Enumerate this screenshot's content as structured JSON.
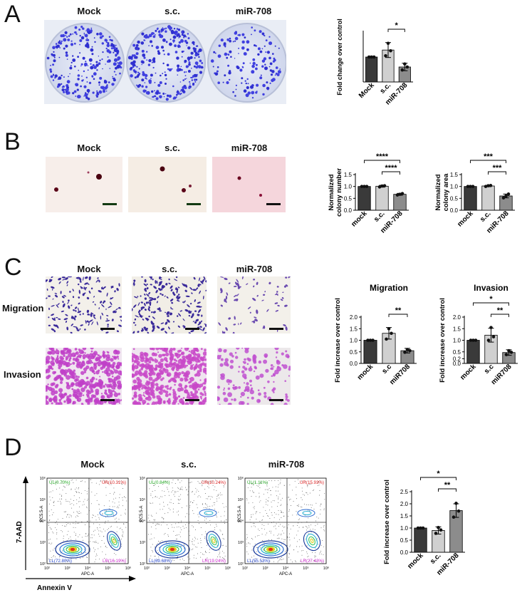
{
  "panels": {
    "A": {
      "letter": "A",
      "labels": [
        "Mock",
        "s.c.",
        "miR-708"
      ]
    },
    "B": {
      "letter": "B",
      "labels": [
        "Mock",
        "s.c.",
        "miR-708"
      ]
    },
    "C": {
      "letter": "C",
      "labels": [
        "Mock",
        "s.c.",
        "miR-708"
      ],
      "rows": [
        "Migration",
        "Invasion"
      ]
    },
    "D": {
      "letter": "D",
      "labels": [
        "Mock",
        "s.c.",
        "miR-708"
      ],
      "y_axis_label": "7-AAD",
      "x_axis_label": "Annexin V",
      "flow_axis_x": "APC-A",
      "flow_axis_y": "PC5.5-A",
      "quadrants": [
        {
          "UL": "UL(0.70%)",
          "UR": "UR(10.31%)",
          "LL": "LL(72.80%)",
          "LR": "LR(16.19%)"
        },
        {
          "UL": "UL(0.84%)",
          "UR": "UR(10.24%)",
          "LL": "LL(69.68%)",
          "LR": "LR(19.24%)"
        },
        {
          "UL": "UL(1.11%)",
          "UR": "UR(15.93%)",
          "LL": "LL(55.53%)",
          "LR": "LR(27.43%)"
        }
      ],
      "tick_labels": [
        "10²",
        "10³",
        "10⁴",
        "10⁵",
        "10⁶"
      ]
    }
  },
  "chart_data": [
    {
      "id": "A-colony",
      "type": "bar",
      "categories": [
        "Mock",
        "s.c.",
        "miR-708"
      ],
      "values": [
        1.0,
        1.28,
        0.6
      ],
      "errors": [
        0.0,
        0.3,
        0.15
      ],
      "points": [
        [
          1.0,
          1.0,
          1.0
        ],
        [
          1.05,
          1.55,
          1.25
        ],
        [
          0.48,
          0.72,
          0.6
        ]
      ],
      "colors": [
        "#3a3a3a",
        "#d0d0d0",
        "#8c8c8c"
      ],
      "title": "",
      "ylabel": "Fold change over control",
      "ylim": [
        0,
        2
      ],
      "yticks": [],
      "significance": [
        {
          "from": 1,
          "to": 2,
          "label": "*"
        }
      ]
    },
    {
      "id": "B-number",
      "type": "bar",
      "categories": [
        "mock",
        "s.c.",
        "miR-708"
      ],
      "values": [
        1.0,
        1.01,
        0.67
      ],
      "errors": [
        0.0,
        0.04,
        0.04
      ],
      "points": [
        [
          1.0,
          1.0,
          1.0
        ],
        [
          0.98,
          1.02,
          1.03
        ],
        [
          0.64,
          0.67,
          0.7
        ]
      ],
      "colors": [
        "#3a3a3a",
        "#d0d0d0",
        "#8c8c8c"
      ],
      "title": "",
      "ylabel": "Normalized colony number",
      "ylabel_lines": [
        "Normalized",
        "colony number"
      ],
      "ylim": [
        0,
        1.5
      ],
      "yticks": [
        "0.0",
        "0.5",
        "1.0",
        "1.5"
      ],
      "yticks_values": [
        0,
        0.5,
        1.0,
        1.5
      ],
      "significance": [
        {
          "from": 1,
          "to": 2,
          "label": "****",
          "level": 1
        },
        {
          "from": 0,
          "to": 2,
          "label": "****",
          "level": 2
        }
      ]
    },
    {
      "id": "B-area",
      "type": "bar",
      "categories": [
        "mock",
        "s.c.",
        "miR-708"
      ],
      "values": [
        1.0,
        1.02,
        0.6
      ],
      "errors": [
        0.0,
        0.03,
        0.08
      ],
      "points": [
        [
          1.0,
          1.0,
          1.0
        ],
        [
          1.0,
          1.03,
          1.04
        ],
        [
          0.52,
          0.6,
          0.68
        ]
      ],
      "colors": [
        "#3a3a3a",
        "#d0d0d0",
        "#8c8c8c"
      ],
      "title": "",
      "ylabel": "Normalized colony area",
      "ylabel_lines": [
        "Normalized",
        "colony area"
      ],
      "ylim": [
        0,
        1.5
      ],
      "yticks": [
        "0.0",
        "0.5",
        "1.0",
        "1.5"
      ],
      "yticks_values": [
        0,
        0.5,
        1.0,
        1.5
      ],
      "significance": [
        {
          "from": 1,
          "to": 2,
          "label": "***",
          "level": 1
        },
        {
          "from": 0,
          "to": 2,
          "label": "***",
          "level": 2
        }
      ]
    },
    {
      "id": "C-migration",
      "type": "bar",
      "categories": [
        "mock",
        "s.c",
        "miR708"
      ],
      "values": [
        1.0,
        1.3,
        0.55
      ],
      "errors": [
        0.0,
        0.25,
        0.1
      ],
      "points": [
        [
          1.0,
          1.0,
          1.0
        ],
        [
          1.05,
          1.5,
          1.3
        ],
        [
          0.48,
          0.6,
          0.55
        ]
      ],
      "colors": [
        "#3a3a3a",
        "#d0d0d0",
        "#8c8c8c"
      ],
      "title": "Migration",
      "ylabel": "Fold increase over control",
      "ylim": [
        0,
        2.0
      ],
      "yticks": [
        "0.0",
        "0.5",
        "1.0",
        "1.5",
        "2.0"
      ],
      "yticks_values": [
        0,
        0.5,
        1.0,
        1.5,
        2.0
      ],
      "significance": [
        {
          "from": 1,
          "to": 2,
          "label": "**",
          "level": 1
        }
      ]
    },
    {
      "id": "C-invasion",
      "type": "bar",
      "categories": [
        "mock",
        "s.c",
        "miR708"
      ],
      "values": [
        1.0,
        1.22,
        0.47
      ],
      "errors": [
        0.0,
        0.3,
        0.12
      ],
      "points": [
        [
          1.0,
          1.0,
          1.0
        ],
        [
          1.0,
          1.55,
          1.15
        ],
        [
          0.38,
          0.55,
          0.48
        ]
      ],
      "colors": [
        "#3a3a3a",
        "#d0d0d0",
        "#8c8c8c"
      ],
      "title": "Invasion",
      "ylabel": "Fold increase over control",
      "ylim": [
        0,
        2.0
      ],
      "yticks": [
        "0.0",
        "0.2",
        "0.5",
        "1.0",
        "1.5",
        "2.0"
      ],
      "yticks_values": [
        0,
        0.2,
        0.5,
        1.0,
        1.5,
        2.0
      ],
      "significance": [
        {
          "from": 1,
          "to": 2,
          "label": "**",
          "level": 1
        },
        {
          "from": 0,
          "to": 2,
          "label": "*",
          "level": 2
        }
      ]
    },
    {
      "id": "D-apoptosis",
      "type": "bar",
      "categories": [
        "mock",
        "s.c.",
        "miR-708"
      ],
      "values": [
        1.0,
        0.9,
        1.72
      ],
      "errors": [
        0.0,
        0.15,
        0.28
      ],
      "points": [
        [
          1.0,
          1.0,
          1.0
        ],
        [
          0.78,
          1.02,
          0.92
        ],
        [
          1.45,
          2.02,
          1.7
        ]
      ],
      "colors": [
        "#3a3a3a",
        "#d0d0d0",
        "#8c8c8c"
      ],
      "title": "",
      "ylabel": "Fold increase over control",
      "ylim": [
        0,
        2.5
      ],
      "yticks": [
        "0.0",
        "0.5",
        "1.0",
        "1.5",
        "2.0",
        "2.5"
      ],
      "yticks_values": [
        0,
        0.5,
        1.0,
        1.5,
        2.0,
        2.5
      ],
      "significance": [
        {
          "from": 1,
          "to": 2,
          "label": "**",
          "level": 1
        },
        {
          "from": 0,
          "to": 2,
          "label": "*",
          "level": 2
        }
      ]
    }
  ]
}
